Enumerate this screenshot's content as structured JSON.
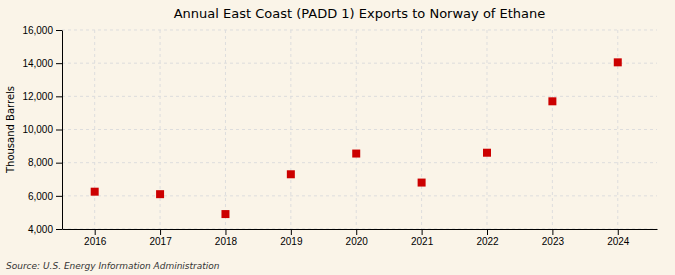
{
  "chart_data": {
    "type": "scatter",
    "title": "Annual East Coast (PADD 1) Exports to Norway of Ethane",
    "ylabel": "Thousand Barrels",
    "source": "Source: U.S. Energy Information Administration",
    "x": [
      2016,
      2017,
      2018,
      2019,
      2020,
      2021,
      2022,
      2023,
      2024
    ],
    "values": [
      6250,
      6100,
      4900,
      7300,
      8550,
      6800,
      8600,
      11700,
      14050
    ],
    "color": "#cc0000",
    "marker": "square",
    "xlim": [
      2015.5,
      2024.6
    ],
    "xticks": [
      2016,
      2017,
      2018,
      2019,
      2020,
      2021,
      2022,
      2023,
      2024
    ],
    "ylim": [
      4000,
      16000
    ],
    "yticks": [
      {
        "value": 4000,
        "label": "4,000"
      },
      {
        "value": 6000,
        "label": "6,000"
      },
      {
        "value": 8000,
        "label": "8,000"
      },
      {
        "value": 10000,
        "label": "10,000"
      },
      {
        "value": 12000,
        "label": "12,000"
      },
      {
        "value": 14000,
        "label": "14,000"
      },
      {
        "value": 16000,
        "label": "16,000"
      }
    ],
    "grid": true
  }
}
